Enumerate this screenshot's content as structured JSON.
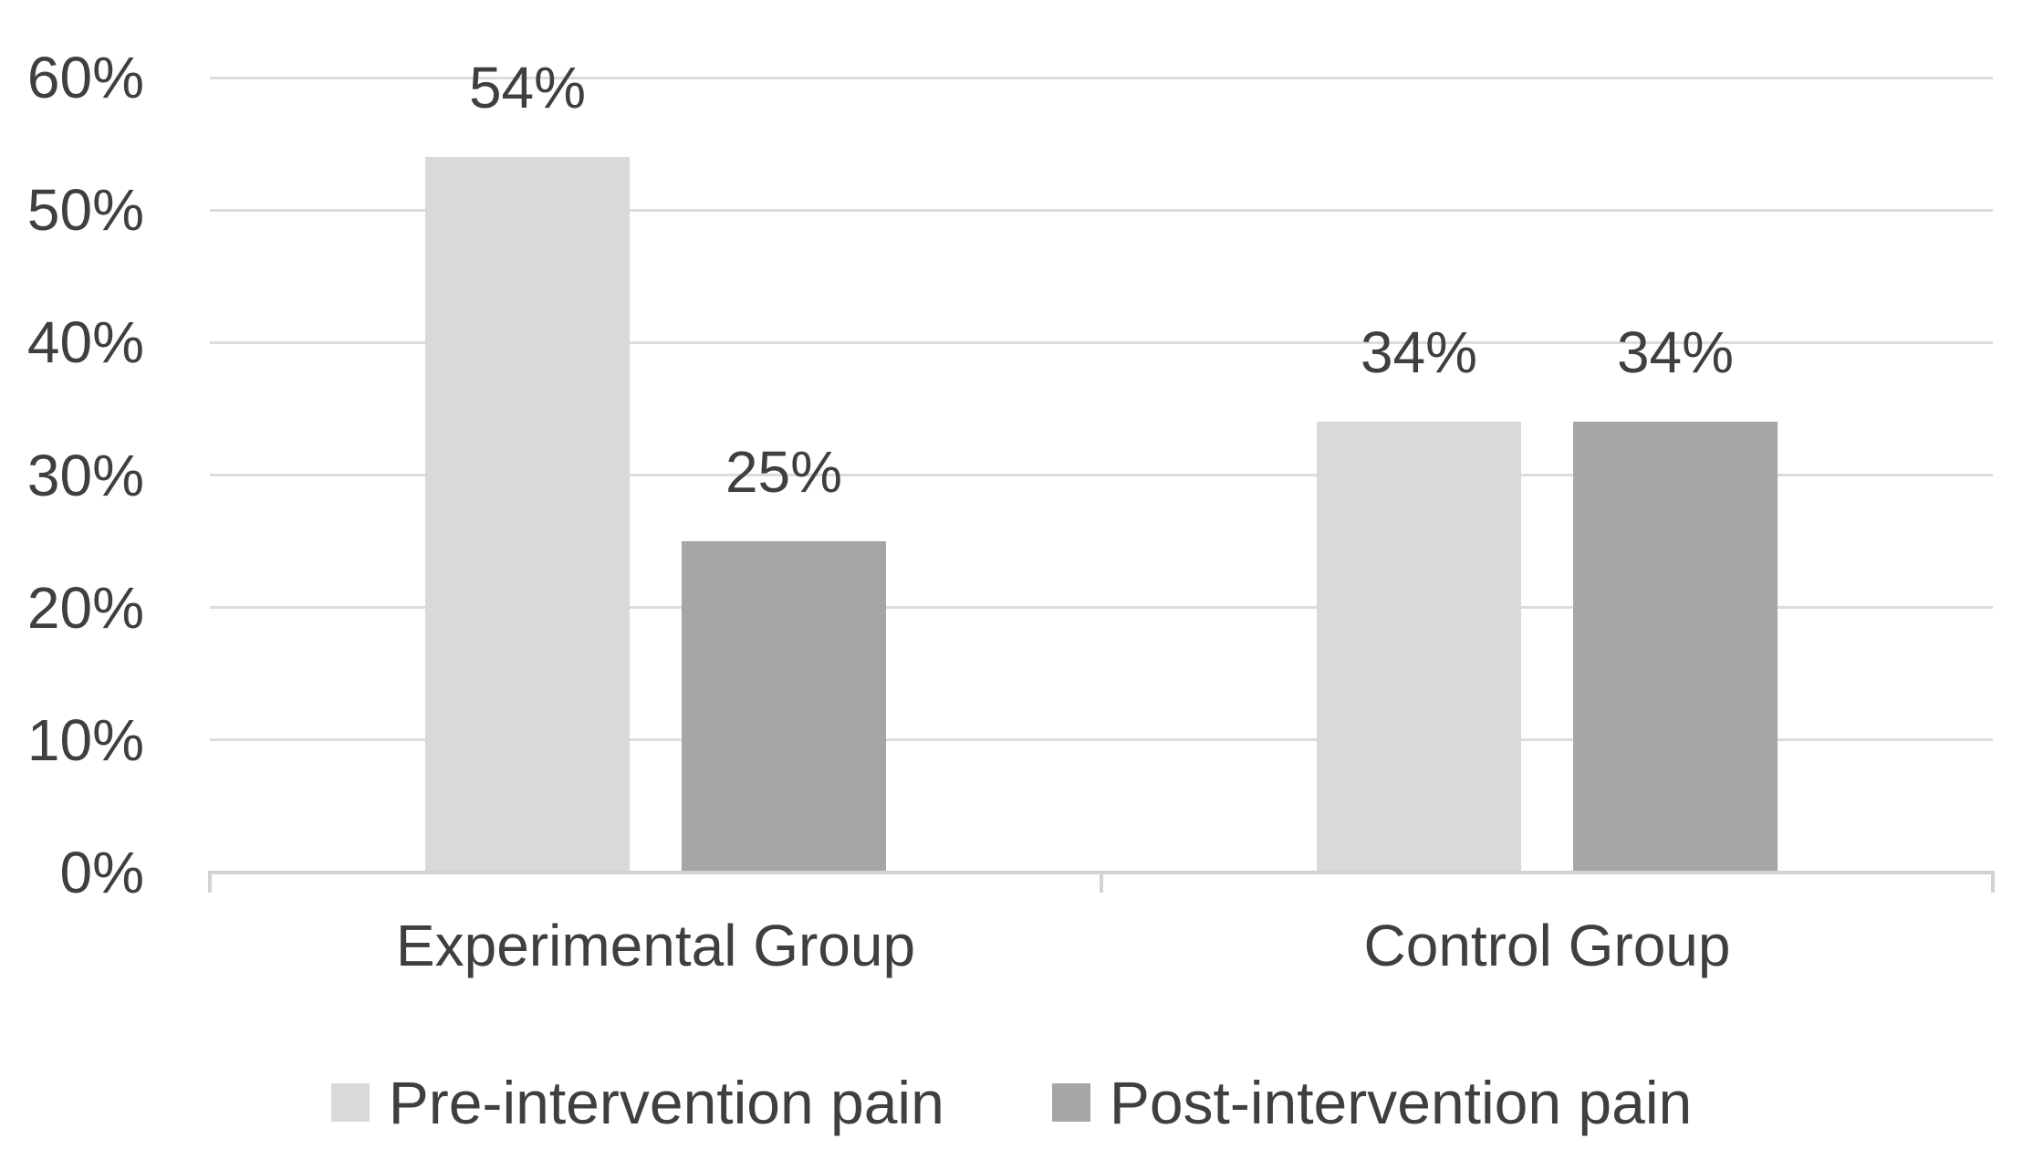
{
  "chart_data": {
    "type": "bar",
    "title": "",
    "categories": [
      "Experimental Group",
      "Control Group"
    ],
    "series": [
      {
        "name": "Pre-intervention pain",
        "color": "#d9d9d9",
        "values": [
          54,
          34
        ]
      },
      {
        "name": "Post-intervention pain",
        "color": "#a6a6a6",
        "values": [
          25,
          34
        ]
      }
    ],
    "labels": [
      [
        "54%",
        "25%"
      ],
      [
        "34%",
        "34%"
      ]
    ],
    "y_axis": {
      "unit": "%",
      "min": 0,
      "max": 60,
      "tick_values": [
        0,
        10,
        20,
        30,
        40,
        50,
        60
      ],
      "ticks": [
        "0%",
        "10%",
        "20%",
        "30%",
        "40%",
        "50%",
        "60%"
      ]
    },
    "xlabel": "",
    "ylabel": "",
    "grid": true,
    "legend_position": "bottom"
  },
  "colors": {
    "background": "#ffffff",
    "text": "#3f3f3f",
    "gridline": "#dcdcdc",
    "axis": "#d2d2d2",
    "series_pre": "#d9d9d9",
    "series_post": "#a6a6a6"
  }
}
